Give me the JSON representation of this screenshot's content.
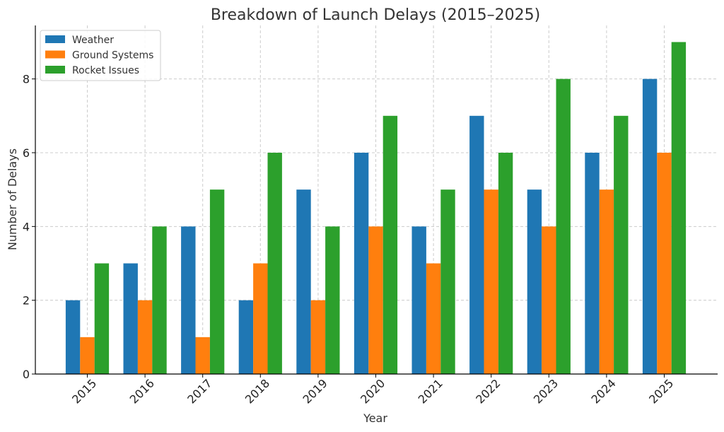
{
  "chart_data": {
    "type": "bar",
    "title": "Breakdown of Launch Delays (2015–2025)",
    "xlabel": "Year",
    "ylabel": "Number of Delays",
    "categories": [
      "2015",
      "2016",
      "2017",
      "2018",
      "2019",
      "2020",
      "2021",
      "2022",
      "2023",
      "2024",
      "2025"
    ],
    "series": [
      {
        "name": "Weather",
        "color": "#1f77b4",
        "values": [
          2,
          3,
          4,
          2,
          5,
          6,
          4,
          7,
          5,
          6,
          8
        ]
      },
      {
        "name": "Ground Systems",
        "color": "#ff7f0e",
        "values": [
          1,
          2,
          1,
          3,
          2,
          4,
          3,
          5,
          4,
          5,
          6
        ]
      },
      {
        "name": "Rocket Issues",
        "color": "#2ca02c",
        "values": [
          3,
          4,
          5,
          6,
          4,
          7,
          5,
          6,
          8,
          7,
          9
        ]
      }
    ],
    "ylim": [
      0,
      9.45
    ],
    "yticks": [
      0,
      2,
      4,
      6,
      8
    ],
    "grid": true,
    "legend_position": "top-left"
  }
}
